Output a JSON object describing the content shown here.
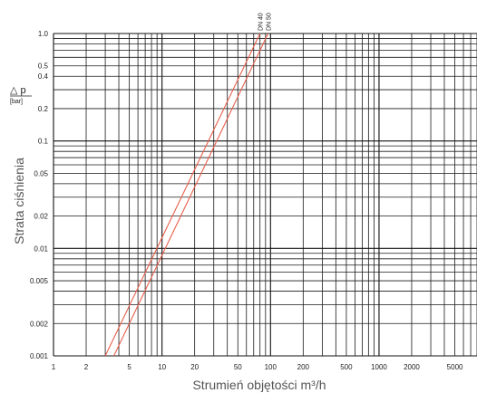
{
  "chart_data": {
    "type": "line",
    "title": "",
    "xlabel": "Strumień objętości  m³/h",
    "ylabel": "Strata ciśnienia",
    "y_unit_symbol": "△ p",
    "y_unit": "[bar]",
    "x_scale": "log",
    "y_scale": "log",
    "xlim": [
      1,
      8000
    ],
    "ylim": [
      0.001,
      1.0
    ],
    "grid": true,
    "x_ticks": [
      {
        "value": 1,
        "label": "1"
      },
      {
        "value": 2,
        "label": "2"
      },
      {
        "value": 5,
        "label": "5"
      },
      {
        "value": 10,
        "label": "10"
      },
      {
        "value": 20,
        "label": "20"
      },
      {
        "value": 50,
        "label": "50"
      },
      {
        "value": 100,
        "label": "100"
      },
      {
        "value": 200,
        "label": "200"
      },
      {
        "value": 500,
        "label": "500"
      },
      {
        "value": 1000,
        "label": "1000"
      },
      {
        "value": 2000,
        "label": "2000"
      },
      {
        "value": 5000,
        "label": "5000"
      }
    ],
    "y_ticks": [
      {
        "value": 1.0,
        "label": "1.0"
      },
      {
        "value": 0.5,
        "label": "0.5"
      },
      {
        "value": 0.4,
        "label": "0.4"
      },
      {
        "value": 0.2,
        "label": "0.2"
      },
      {
        "value": 0.1,
        "label": "0.1"
      },
      {
        "value": 0.05,
        "label": "0.05"
      },
      {
        "value": 0.02,
        "label": "0.02"
      },
      {
        "value": 0.01,
        "label": "0.01"
      },
      {
        "value": 0.005,
        "label": "0.005"
      },
      {
        "value": 0.002,
        "label": "0.002"
      },
      {
        "value": 0.001,
        "label": "0.001"
      }
    ],
    "series": [
      {
        "name": "DN 40",
        "x": [
          3.0,
          80
        ],
        "y": [
          0.001,
          1.0
        ]
      },
      {
        "name": "DN 50",
        "x": [
          3.6,
          95
        ],
        "y": [
          0.001,
          1.0
        ]
      }
    ],
    "series_color": "#e8604c"
  }
}
